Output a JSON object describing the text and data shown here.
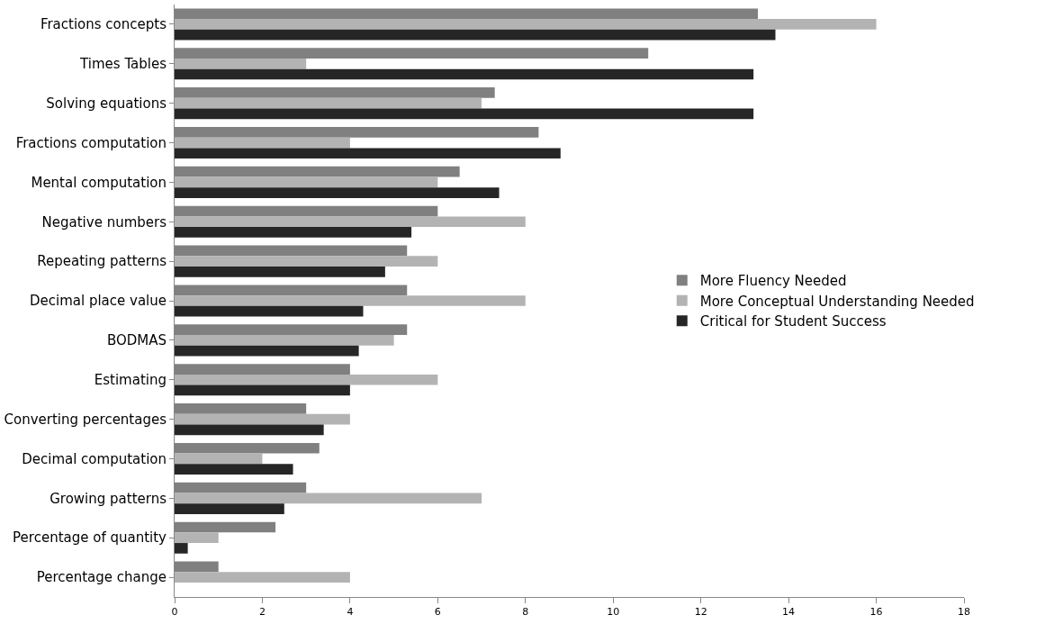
{
  "chart_data": {
    "type": "bar",
    "orientation": "horizontal",
    "categories": [
      "Fractions concepts",
      "Times Tables",
      "Solving equations",
      "Fractions computation",
      "Mental computation",
      "Negative numbers",
      "Repeating patterns",
      "Decimal place value",
      "BODMAS",
      "Estimating",
      "Converting percentages",
      "Decimal computation",
      "Growing patterns",
      "Percentage of quantity",
      "Percentage change"
    ],
    "series": [
      {
        "name": "More Fluency Needed",
        "color": "#808080",
        "values": [
          13.3,
          10.8,
          7.3,
          8.3,
          6.5,
          6,
          5.3,
          5.3,
          5.3,
          4,
          3,
          3.3,
          3,
          2.3,
          1
        ]
      },
      {
        "name": "More Conceptual Understanding Needed",
        "color": "#b3b3b3",
        "values": [
          16,
          3,
          7,
          4,
          6,
          8,
          6,
          8,
          5,
          6,
          4,
          2,
          7,
          1,
          4
        ]
      },
      {
        "name": "Critical for Student Success",
        "color": "#262626",
        "values": [
          13.7,
          13.2,
          13.2,
          8.8,
          7.4,
          5.4,
          4.8,
          4.3,
          4.2,
          4,
          3.4,
          2.7,
          2.5,
          0.3,
          0
        ]
      }
    ],
    "xlim": [
      0,
      18
    ],
    "xticks": [
      0,
      2,
      4,
      6,
      8,
      10,
      12,
      14,
      16,
      18
    ],
    "legend": "right"
  }
}
